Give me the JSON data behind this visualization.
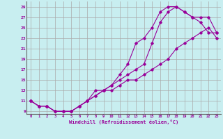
{
  "xlabel": "Windchill (Refroidissement éolien,°C)",
  "background_color": "#c8eef0",
  "line_color": "#990099",
  "grid_color": "#aaaaaa",
  "xlim": [
    -0.5,
    23.5
  ],
  "ylim": [
    8.5,
    30
  ],
  "yticks": [
    9,
    11,
    13,
    15,
    17,
    19,
    21,
    23,
    25,
    27,
    29
  ],
  "xticks": [
    0,
    1,
    2,
    3,
    4,
    5,
    6,
    7,
    8,
    9,
    10,
    11,
    12,
    13,
    14,
    15,
    16,
    17,
    18,
    19,
    20,
    21,
    22,
    23
  ],
  "series1_x": [
    0,
    1,
    2,
    3,
    4,
    5,
    6,
    7,
    8,
    9,
    10,
    11,
    12,
    13,
    14,
    15,
    16,
    17,
    18,
    19,
    20,
    21,
    22,
    23
  ],
  "series1_y": [
    11,
    10,
    10,
    9,
    9,
    9,
    10,
    11,
    12,
    13,
    13,
    14,
    15,
    15,
    16,
    17,
    18,
    19,
    21,
    22,
    23,
    24,
    25,
    23
  ],
  "series2_x": [
    0,
    1,
    2,
    3,
    4,
    5,
    6,
    7,
    8,
    9,
    10,
    11,
    12,
    13,
    14,
    15,
    16,
    17,
    18,
    19,
    20,
    21,
    22,
    23
  ],
  "series2_y": [
    11,
    10,
    10,
    9,
    9,
    9,
    10,
    11,
    13,
    13,
    14,
    15,
    16,
    17,
    18,
    22,
    26,
    28,
    29,
    28,
    27,
    27,
    27,
    24
  ],
  "series3_x": [
    0,
    1,
    2,
    3,
    4,
    5,
    6,
    7,
    8,
    9,
    10,
    11,
    12,
    13,
    14,
    15,
    16,
    17,
    18,
    19,
    20,
    21,
    22,
    23
  ],
  "series3_y": [
    11,
    10,
    10,
    9,
    9,
    9,
    10,
    11,
    12,
    13,
    14,
    16,
    18,
    22,
    23,
    25,
    28,
    29,
    29,
    28,
    27,
    26,
    24,
    24
  ]
}
